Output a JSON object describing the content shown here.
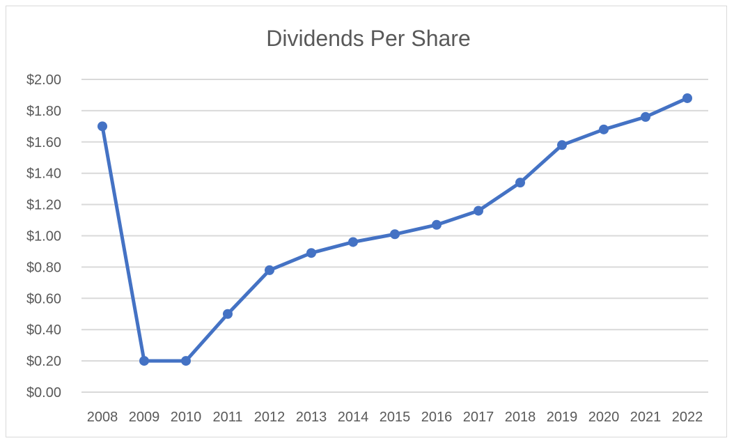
{
  "chart_data": {
    "type": "line",
    "title": "Dividends Per Share",
    "xlabel": "",
    "ylabel": "",
    "categories": [
      "2008",
      "2009",
      "2010",
      "2011",
      "2012",
      "2013",
      "2014",
      "2015",
      "2016",
      "2017",
      "2018",
      "2019",
      "2020",
      "2021",
      "2022"
    ],
    "series": [
      {
        "values": [
          1.7,
          0.2,
          0.2,
          0.5,
          0.78,
          0.89,
          0.96,
          1.01,
          1.07,
          1.16,
          1.34,
          1.58,
          1.68,
          1.76,
          1.88
        ],
        "color": "#4472c4"
      }
    ],
    "ylim": [
      0,
      2
    ],
    "y_ticks": [
      0,
      0.2,
      0.4,
      0.6,
      0.8,
      1.0,
      1.2,
      1.4,
      1.6,
      1.8,
      2.0
    ],
    "y_tick_labels": [
      "$0.00",
      "$0.20",
      "$0.40",
      "$0.60",
      "$0.80",
      "$1.00",
      "$1.20",
      "$1.40",
      "$1.60",
      "$1.80",
      "$2.00"
    ],
    "grid": true,
    "legend": "none",
    "markers": true
  }
}
